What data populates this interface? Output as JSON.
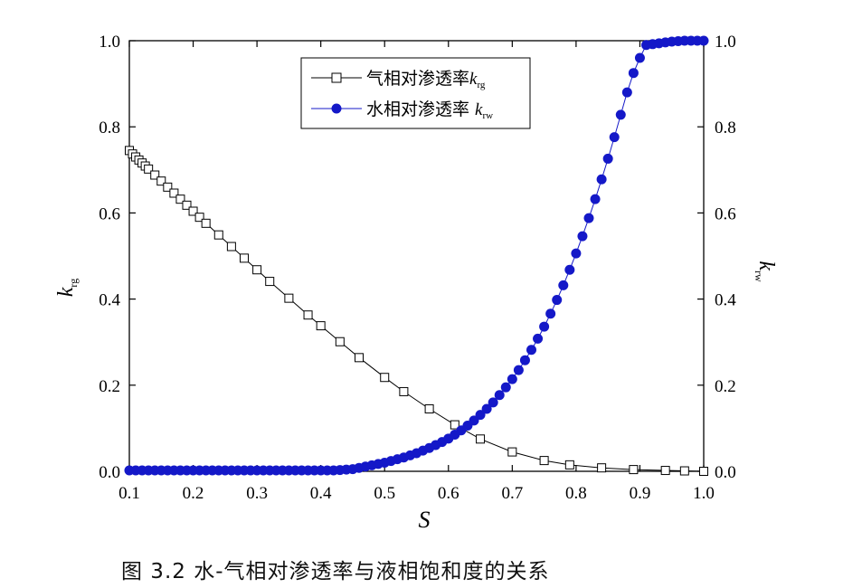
{
  "caption": "图 3.2  水-气相对渗透率与液相饱和度的关系",
  "chart_data": {
    "type": "line",
    "xlabel": "S",
    "ylabel_left": "k",
    "ylabel_left_sub": "rg",
    "ylabel_right": "k",
    "ylabel_right_sub": "rw",
    "xlim": [
      0.1,
      1.0
    ],
    "ylim_left": [
      0.0,
      1.0
    ],
    "ylim_right": [
      0.0,
      1.0
    ],
    "x_ticks": [
      "0.1",
      "0.2",
      "0.3",
      "0.4",
      "0.5",
      "0.6",
      "0.7",
      "0.8",
      "0.9",
      "1.0"
    ],
    "y_ticks": [
      "0.0",
      "0.2",
      "0.4",
      "0.6",
      "0.8",
      "1.0"
    ],
    "y_ticks_right": [
      "0.0",
      "0.2",
      "0.4",
      "0.6",
      "0.8",
      "1.0"
    ],
    "grid": false,
    "legend_position": "top-center",
    "series": [
      {
        "name": "气相对渗透率",
        "symbol": "k",
        "symbol_sub": "rg",
        "marker": "open-square",
        "color": "#000000",
        "axis": "left",
        "x": [
          0.1,
          0.105,
          0.11,
          0.115,
          0.12,
          0.125,
          0.13,
          0.14,
          0.15,
          0.16,
          0.17,
          0.18,
          0.19,
          0.2,
          0.21,
          0.22,
          0.24,
          0.26,
          0.28,
          0.3,
          0.32,
          0.35,
          0.38,
          0.4,
          0.43,
          0.46,
          0.5,
          0.53,
          0.57,
          0.61,
          0.65,
          0.7,
          0.75,
          0.79,
          0.84,
          0.89,
          0.94,
          0.97,
          1.0
        ],
        "y": [
          0.745,
          0.737,
          0.73,
          0.723,
          0.716,
          0.709,
          0.702,
          0.688,
          0.674,
          0.66,
          0.646,
          0.632,
          0.618,
          0.604,
          0.59,
          0.576,
          0.549,
          0.522,
          0.495,
          0.468,
          0.441,
          0.402,
          0.363,
          0.338,
          0.301,
          0.264,
          0.218,
          0.185,
          0.145,
          0.108,
          0.075,
          0.045,
          0.025,
          0.015,
          0.008,
          0.004,
          0.002,
          0.001,
          0.0
        ]
      },
      {
        "name": "水相对渗透率",
        "symbol": "k",
        "symbol_sub": "rw",
        "marker": "filled-circle",
        "color": "#1418c8",
        "axis": "right",
        "x": [
          0.1,
          0.11,
          0.12,
          0.13,
          0.14,
          0.15,
          0.16,
          0.17,
          0.18,
          0.19,
          0.2,
          0.21,
          0.22,
          0.23,
          0.24,
          0.25,
          0.26,
          0.27,
          0.28,
          0.29,
          0.3,
          0.31,
          0.32,
          0.33,
          0.34,
          0.35,
          0.36,
          0.37,
          0.38,
          0.39,
          0.4,
          0.41,
          0.42,
          0.43,
          0.44,
          0.45,
          0.46,
          0.47,
          0.48,
          0.49,
          0.5,
          0.51,
          0.52,
          0.53,
          0.54,
          0.55,
          0.56,
          0.57,
          0.58,
          0.59,
          0.6,
          0.61,
          0.62,
          0.63,
          0.64,
          0.65,
          0.66,
          0.67,
          0.68,
          0.69,
          0.7,
          0.71,
          0.72,
          0.73,
          0.74,
          0.75,
          0.76,
          0.77,
          0.78,
          0.79,
          0.8,
          0.81,
          0.82,
          0.83,
          0.84,
          0.85,
          0.86,
          0.87,
          0.88,
          0.89,
          0.9,
          0.91,
          0.92,
          0.93,
          0.94,
          0.95,
          0.96,
          0.97,
          0.98,
          0.99,
          1.0
        ],
        "y": [
          0.002,
          0.002,
          0.002,
          0.002,
          0.002,
          0.002,
          0.002,
          0.002,
          0.002,
          0.002,
          0.002,
          0.002,
          0.002,
          0.002,
          0.002,
          0.002,
          0.002,
          0.002,
          0.002,
          0.002,
          0.002,
          0.002,
          0.002,
          0.002,
          0.002,
          0.002,
          0.002,
          0.002,
          0.002,
          0.002,
          0.002,
          0.002,
          0.002,
          0.003,
          0.004,
          0.005,
          0.008,
          0.011,
          0.014,
          0.017,
          0.02,
          0.024,
          0.028,
          0.032,
          0.037,
          0.042,
          0.048,
          0.054,
          0.061,
          0.068,
          0.076,
          0.085,
          0.095,
          0.106,
          0.118,
          0.131,
          0.145,
          0.16,
          0.177,
          0.195,
          0.214,
          0.235,
          0.258,
          0.282,
          0.308,
          0.336,
          0.366,
          0.398,
          0.432,
          0.468,
          0.506,
          0.546,
          0.588,
          0.632,
          0.678,
          0.726,
          0.776,
          0.828,
          0.88,
          0.925,
          0.96,
          0.99,
          0.992,
          0.994,
          0.996,
          0.998,
          0.999,
          1.0,
          1.0,
          1.0,
          1.0
        ]
      }
    ]
  }
}
